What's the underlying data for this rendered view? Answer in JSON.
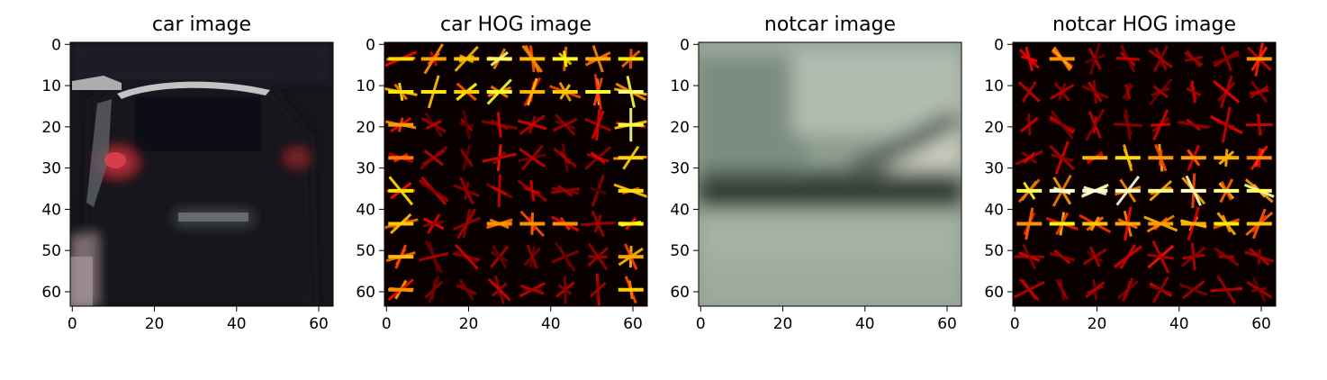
{
  "chart_data": [
    {
      "type": "heatmap",
      "title": "car image",
      "image_size": [
        64,
        64
      ],
      "xlim": [
        0,
        63
      ],
      "ylim": [
        63,
        0
      ],
      "xticks": [
        0,
        20,
        40,
        60
      ],
      "yticks": [
        0,
        10,
        20,
        30,
        40,
        50,
        60
      ],
      "xtick_labels": [
        "0",
        "20",
        "40",
        "60"
      ],
      "ytick_labels": [
        "0",
        "10",
        "20",
        "30",
        "40",
        "50",
        "60"
      ],
      "content": "rear view of a dark car (RGB photo)",
      "colors": {
        "background": "#17181f",
        "body": "#12131a",
        "roof": "#d8d8d8",
        "taillight": "#c0303a"
      }
    },
    {
      "type": "heatmap",
      "title": "car HOG image",
      "image_size": [
        64,
        64
      ],
      "colormap": "hot",
      "xlim": [
        0,
        63
      ],
      "ylim": [
        63,
        0
      ],
      "xticks": [
        0,
        20,
        40,
        60
      ],
      "yticks": [
        0,
        10,
        20,
        30,
        40,
        50,
        60
      ],
      "xtick_labels": [
        "0",
        "20",
        "40",
        "60"
      ],
      "ytick_labels": [
        "0",
        "10",
        "20",
        "30",
        "40",
        "50",
        "60"
      ],
      "content": "HOG gradient visualization of car image",
      "strong_rows": [
        4,
        12
      ],
      "strong_cols": [
        4,
        60
      ]
    },
    {
      "type": "heatmap",
      "title": "notcar image",
      "image_size": [
        64,
        64
      ],
      "xlim": [
        0,
        63
      ],
      "ylim": [
        63,
        0
      ],
      "xticks": [
        0,
        20,
        40,
        60
      ],
      "yticks": [
        0,
        10,
        20,
        30,
        40,
        50,
        60
      ],
      "xtick_labels": [
        "0",
        "20",
        "40",
        "60"
      ],
      "ytick_labels": [
        "0",
        "10",
        "20",
        "30",
        "40",
        "50",
        "60"
      ],
      "content": "blurred road scene: grass/trees above dark edge at y~38, pavement below",
      "colors": {
        "upper": "#8fa393",
        "edge": "#2f3a33",
        "lower": "#a8b6a5"
      }
    },
    {
      "type": "heatmap",
      "title": "notcar HOG image",
      "image_size": [
        64,
        64
      ],
      "colormap": "hot",
      "xlim": [
        0,
        63
      ],
      "ylim": [
        63,
        0
      ],
      "xticks": [
        0,
        20,
        40,
        60
      ],
      "yticks": [
        0,
        10,
        20,
        30,
        40,
        50,
        60
      ],
      "xtick_labels": [
        "0",
        "20",
        "40",
        "60"
      ],
      "ytick_labels": [
        "0",
        "10",
        "20",
        "30",
        "40",
        "50",
        "60"
      ],
      "content": "HOG gradient visualization of notcar image",
      "strong_rows": [
        36,
        44,
        28
      ]
    }
  ]
}
